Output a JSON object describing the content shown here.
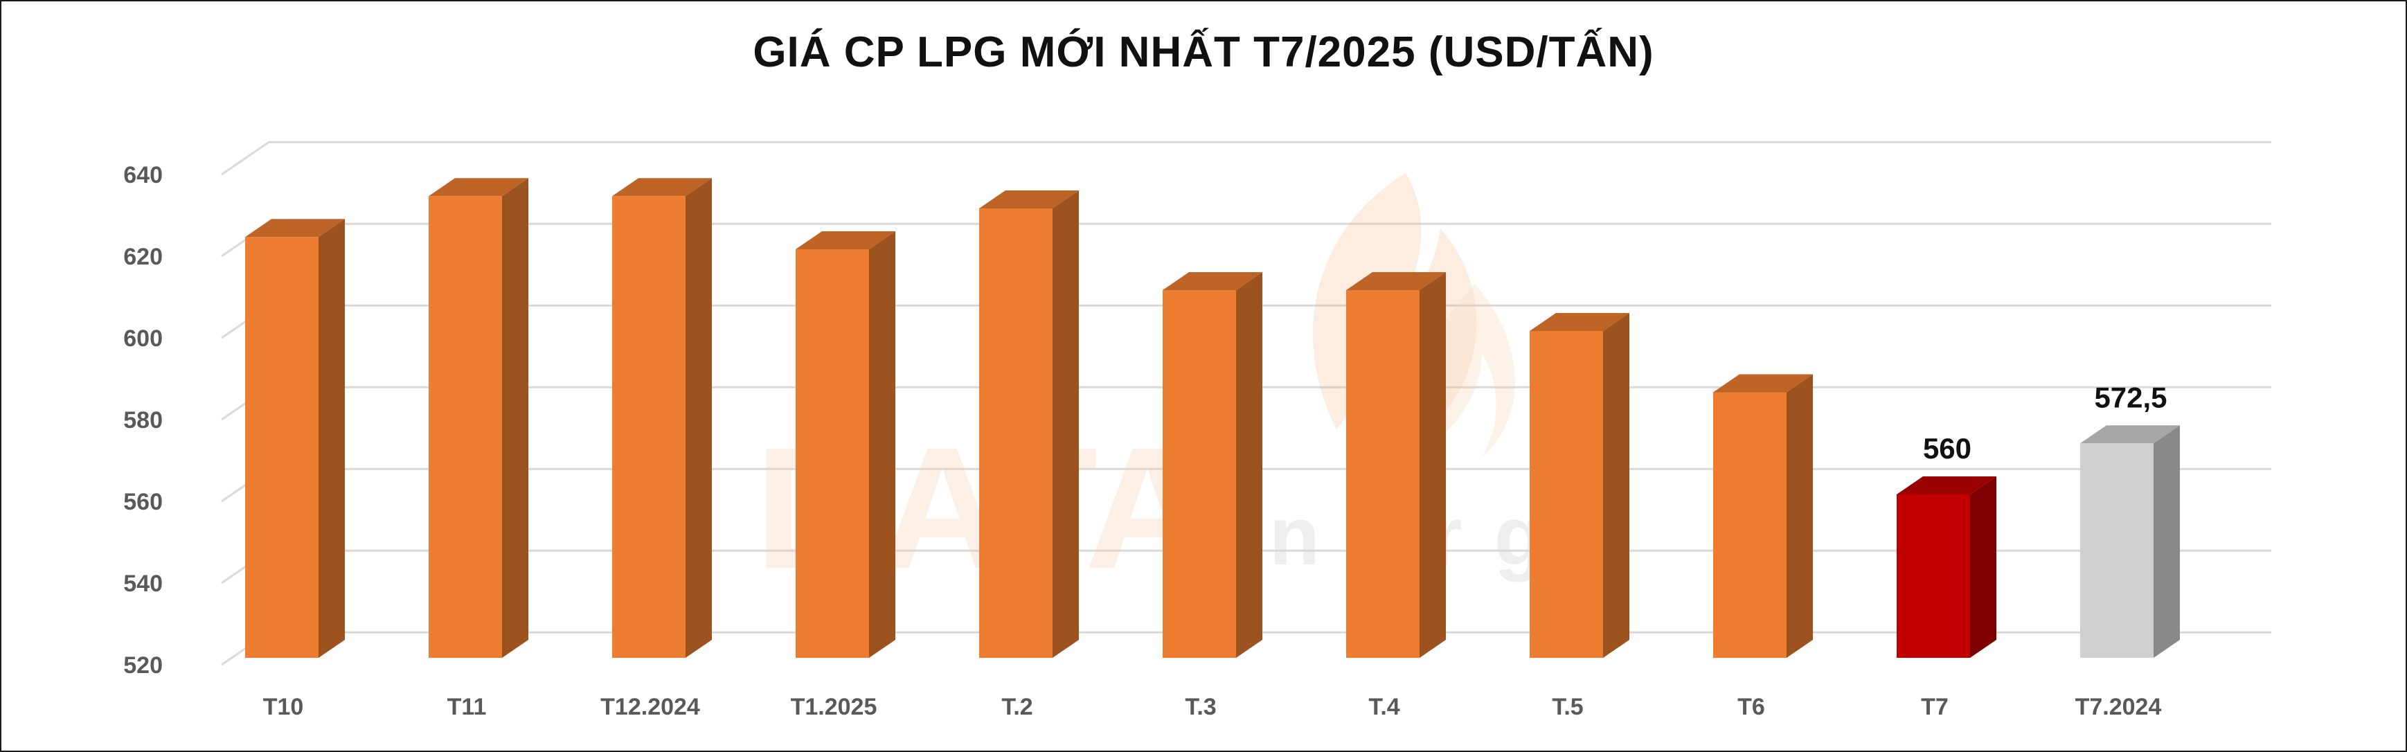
{
  "chart_data": {
    "type": "bar",
    "title": "GIÁ CP LPG MỚI NHẤT T7/2025 (USD/TẤN)",
    "categories": [
      "T10",
      "T11",
      "T12.2024",
      "T1.2025",
      "T.2",
      "T.3",
      "T.4",
      "T.5",
      "T6",
      "T7",
      "T7.2024"
    ],
    "values": [
      623,
      633,
      633,
      620,
      630,
      610,
      610,
      600,
      585,
      560,
      572.5
    ],
    "data_labels": [
      null,
      null,
      null,
      null,
      null,
      null,
      null,
      null,
      null,
      "560",
      "572,5"
    ],
    "bar_colors": [
      "#ED7D31",
      "#ED7D31",
      "#ED7D31",
      "#ED7D31",
      "#ED7D31",
      "#ED7D31",
      "#ED7D31",
      "#ED7D31",
      "#ED7D31",
      "#C00000",
      "#D0D0D0"
    ],
    "y_ticks": [
      520,
      540,
      560,
      580,
      600,
      620,
      640
    ],
    "ylim": [
      520,
      640
    ],
    "grid": true,
    "xlabel": "",
    "ylabel": ""
  },
  "watermark": {
    "brand": "DATA",
    "suffix": "energy"
  }
}
